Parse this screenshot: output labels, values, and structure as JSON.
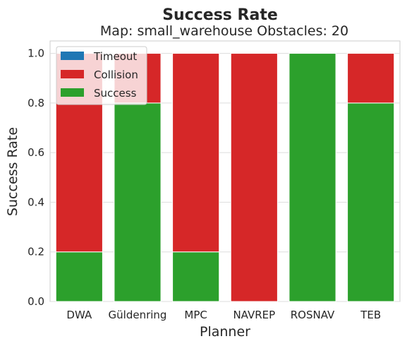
{
  "chart_data": {
    "type": "bar",
    "stacked": true,
    "title": "Success Rate",
    "subtitle": "Map: small_warehouse Obstacles: 20",
    "xlabel": "Planner",
    "ylabel": "Success Rate",
    "categories": [
      "DWA",
      "Güldenring",
      "MPC",
      "NAVREP",
      "ROSNAV",
      "TEB"
    ],
    "ylim": [
      0,
      1.05
    ],
    "yticks": [
      "0.0",
      "0.2",
      "0.4",
      "0.6",
      "0.8",
      "1.0"
    ],
    "grid": "horizontal",
    "legend_position": "top-left",
    "series": [
      {
        "name": "Success",
        "color": "#2ca02c",
        "values": [
          0.2,
          0.8,
          0.2,
          0.0,
          1.0,
          0.8
        ]
      },
      {
        "name": "Collision",
        "color": "#d62728",
        "values": [
          0.8,
          0.2,
          0.8,
          1.0,
          0.0,
          0.2
        ]
      },
      {
        "name": "Timeout",
        "color": "#1f77b4",
        "values": [
          0.0,
          0.0,
          0.0,
          0.0,
          0.0,
          0.0
        ]
      }
    ],
    "legend_order": [
      "Timeout",
      "Collision",
      "Success"
    ]
  }
}
